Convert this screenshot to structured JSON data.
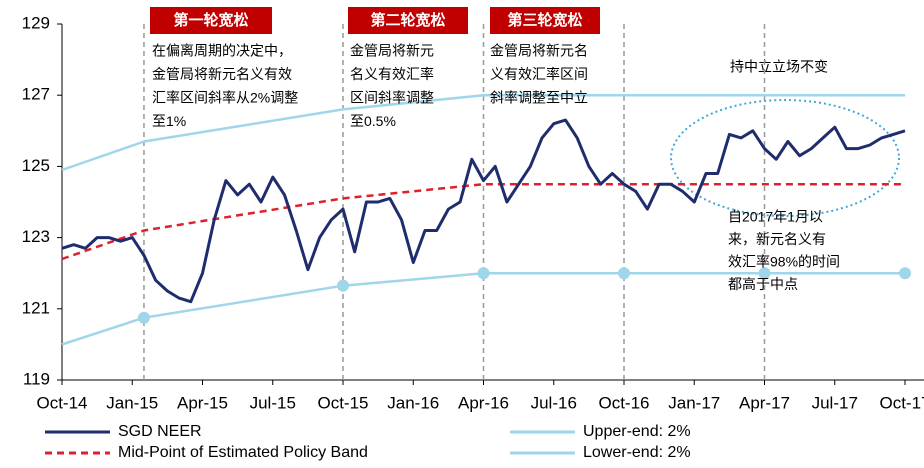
{
  "chart_data": {
    "type": "line",
    "xlim": [
      0,
      36
    ],
    "xticks": [
      {
        "value": 0,
        "label": "Oct-14"
      },
      {
        "value": 3,
        "label": "Jan-15"
      },
      {
        "value": 6,
        "label": "Apr-15"
      },
      {
        "value": 9,
        "label": "Jul-15"
      },
      {
        "value": 12,
        "label": "Oct-15"
      },
      {
        "value": 15,
        "label": "Jan-16"
      },
      {
        "value": 18,
        "label": "Apr-16"
      },
      {
        "value": 21,
        "label": "Jul-16"
      },
      {
        "value": 24,
        "label": "Oct-16"
      },
      {
        "value": 27,
        "label": "Jan-17"
      },
      {
        "value": 30,
        "label": "Apr-17"
      },
      {
        "value": 33,
        "label": "Jul-17"
      },
      {
        "value": 36,
        "label": "Oct-17"
      }
    ],
    "ylim": [
      119,
      129
    ],
    "yticks": [
      119,
      121,
      123,
      125,
      127,
      129
    ],
    "series": [
      {
        "name": "SGD NEER",
        "color": "#1f2d6e",
        "style": "solid",
        "x": [
          0,
          0.5,
          1,
          1.5,
          2,
          2.5,
          3,
          3.5,
          4,
          4.5,
          5,
          5.5,
          6,
          6.5,
          7,
          7.5,
          8,
          8.5,
          9,
          9.5,
          10,
          10.5,
          11,
          11.5,
          12,
          12.5,
          13,
          13.5,
          14,
          14.5,
          15,
          15.5,
          16,
          16.5,
          17,
          17.5,
          18,
          18.5,
          19,
          19.5,
          20,
          20.5,
          21,
          21.5,
          22,
          22.5,
          23,
          23.5,
          24,
          24.5,
          25,
          25.5,
          26,
          26.5,
          27,
          27.5,
          28,
          28.5,
          29,
          29.5,
          30,
          30.5,
          31,
          31.5,
          32,
          32.5,
          33,
          33.5,
          34,
          34.5,
          35,
          35.5,
          36
        ],
        "values": [
          122.7,
          122.8,
          122.7,
          123.0,
          123.0,
          122.9,
          123.0,
          122.5,
          121.8,
          121.5,
          121.3,
          121.2,
          122.0,
          123.5,
          124.6,
          124.2,
          124.5,
          124.0,
          124.7,
          124.2,
          123.2,
          122.1,
          123.0,
          123.5,
          123.8,
          122.6,
          124.0,
          124.0,
          124.1,
          123.5,
          122.3,
          123.2,
          123.2,
          123.8,
          124.0,
          125.2,
          124.6,
          125.0,
          124.0,
          124.5,
          125.0,
          125.8,
          126.2,
          126.3,
          125.8,
          125.0,
          124.5,
          124.8,
          124.5,
          124.3,
          123.8,
          124.5,
          124.5,
          124.3,
          124.0,
          124.8,
          124.8,
          125.9,
          125.8,
          126.0,
          125.5,
          125.2,
          125.7,
          125.3,
          125.5,
          125.8,
          126.1,
          125.5,
          125.5,
          125.6,
          125.8,
          125.9,
          126.0
        ]
      },
      {
        "name": "Mid-Point of Estimated Policy Band",
        "color": "#e0202a",
        "style": "dashed",
        "x": [
          0,
          3.5,
          12,
          18,
          36
        ],
        "values": [
          122.4,
          123.2,
          124.1,
          124.5,
          124.5
        ]
      },
      {
        "name": "Upper-end: 2%",
        "color": "#9fd6ea",
        "style": "solid",
        "x": [
          0,
          3.5,
          12,
          18,
          36
        ],
        "values": [
          124.9,
          125.7,
          126.6,
          127.0,
          127.0
        ]
      },
      {
        "name": "Lower-end: 2%",
        "color": "#9fd6ea",
        "style": "solid",
        "markers": true,
        "x": [
          0,
          3.5,
          12,
          18,
          24,
          30,
          36
        ],
        "values": [
          120.0,
          120.75,
          121.65,
          122.0,
          122.0,
          122.0,
          122.0
        ]
      }
    ],
    "annotations": [
      {
        "title": "第一轮宽松",
        "lines": [
          "在偏离周期的决定中，",
          "金管局将新元名义有效",
          "汇率区间斜率从2%调整",
          "至1%"
        ]
      },
      {
        "title": "第二轮宽松",
        "lines": [
          "金管局将新元",
          "名义有效汇率",
          "区间斜率调整",
          "至0.5%"
        ]
      },
      {
        "title": "第三轮宽松",
        "lines": [
          "金管局将新元名",
          "义有效汇率区间",
          "斜率调整至中立"
        ]
      }
    ],
    "note": "持中立立场不变",
    "callout": [
      "自2017年1月以",
      "来，新元名义有",
      "效汇率98%的时间",
      "都高于中点"
    ]
  }
}
